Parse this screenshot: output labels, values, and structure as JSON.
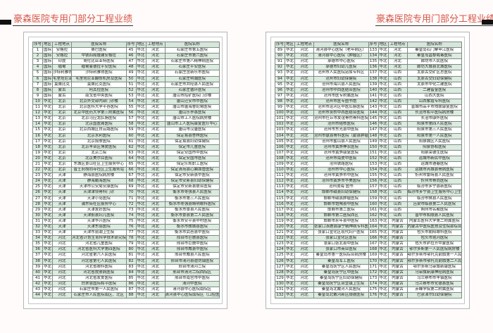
{
  "title": "豪森医院专用门部分工程业绩",
  "columns": [
    "序号",
    "地区",
    "工程地点",
    "医院名称"
  ],
  "pages": [
    {
      "rows": [
        [
          "1",
          "国际",
          "安格拉",
          "桑巴医院"
        ],
        [
          "2",
          "国际",
          "安格拉",
          "中铁四局援建安格拉"
        ],
        [
          "3",
          "国际",
          "印度",
          "哥伦比亚亚特医院"
        ],
        [
          "4",
          "国际",
          "缅甸",
          "缅甸曼德拉平安医院"
        ],
        [
          "5",
          "国际",
          "沙特利雅得",
          "沙特利雅得医院"
        ],
        [
          "6",
          "国际",
          "毛里塔尼亚",
          "毛里塔尼亚翻修机房及医院"
        ],
        [
          "7",
          "国际",
          "莫桑比克",
          "莫桑比克医院"
        ],
        [
          "8",
          "国际",
          "蒙古",
          "阿其拉医院"
        ],
        [
          "9",
          "国际",
          "蒙古",
          "南戈省中央医院"
        ],
        [
          "10",
          "华北",
          "北京",
          "北京外交部内部门诊楼"
        ],
        [
          "11",
          "华北",
          "北京",
          "北京医科大学平谷医院"
        ],
        [
          "12",
          "华北",
          "北京",
          "北京中医药大学第三附属医院"
        ],
        [
          "13",
          "华北",
          "北京",
          "北京马应龙肛肠医院"
        ],
        [
          "14",
          "华北",
          "北京",
          "北京国医阁医院"
        ],
        [
          "15",
          "华北",
          "北京",
          "北京西城区白云路医院"
        ],
        [
          "16",
          "华北",
          "北京",
          "北京水利医院"
        ],
        [
          "17",
          "华北",
          "北京",
          "北京按摩医院"
        ],
        [
          "18",
          "华北",
          "北京",
          "北京丰台区博爱医院"
        ],
        [
          "19",
          "华北",
          "北京",
          "北京二院"
        ],
        [
          "20",
          "华北",
          "北京",
          "北京美尔目医院"
        ],
        [
          "21",
          "华北",
          "北京",
          "东城区景山社区卫生服务中心"
        ],
        [
          "22",
          "华北",
          "北京",
          "普王府胡同寺社区卫生服务站"
        ],
        [
          "23",
          "华北",
          "天津",
          "静海县医院病房楼"
        ],
        [
          "24",
          "华北",
          "天津",
          "静海鹏海医院"
        ],
        [
          "25",
          "华北",
          "天津",
          "天津市公安局安康医院"
        ],
        [
          "26",
          "华北",
          "天津",
          "天津津坝骨科门诊"
        ],
        [
          "27",
          "华北",
          "天津",
          "天津小岛医院"
        ],
        [
          "28",
          "华北",
          "天津",
          "浦东街社区服务中心"
        ],
        [
          "29",
          "华北",
          "天津",
          "天津友好医院"
        ],
        [
          "30",
          "华北",
          "天津",
          "天津蓟县妇儿医院"
        ],
        [
          "31",
          "华北",
          "天津",
          "天津华兴医院"
        ],
        [
          "32",
          "华北",
          "天津",
          "天津东丽医院"
        ],
        [
          "33",
          "华北",
          "天津",
          "天津东丽湖卫生院"
        ],
        [
          "34",
          "华北",
          "河北",
          "河北省计划生育科学技术研究院"
        ],
        [
          "35",
          "华北",
          "河北",
          "河北省儿童医院"
        ],
        [
          "36",
          "华北",
          "河北",
          "河北省医科大学第四医院"
        ],
        [
          "37",
          "华北",
          "河北",
          "河北省第六人民医院"
        ],
        [
          "38",
          "华北",
          "河北",
          "河北省第七人民医院"
        ],
        [
          "39",
          "华北",
          "河北",
          "河北省眼科医院"
        ],
        [
          "40",
          "华北",
          "河北",
          "河北省皮肤病医院"
        ],
        [
          "41",
          "华北",
          "河北",
          "河北省友爱医院"
        ],
        [
          "42",
          "华北",
          "河北",
          "白求恩国际和平医院"
        ],
        [
          "43",
          "华北",
          "河北",
          "石家庄市第一人民医院"
        ],
        [
          "44",
          "华北",
          "河北",
          "石家庄市人民医院南区、北区"
        ],
        [
          "45",
          "华北",
          "河北",
          "石家庄市第五医院"
        ],
        [
          "46",
          "华北",
          "河北",
          "石家庄市第六医院"
        ],
        [
          "47",
          "华北",
          "河北",
          "石家庄市第八精神病医院"
        ],
        [
          "48",
          "华北",
          "河北",
          "石家庄平安医院"
        ],
        [
          "49",
          "华北",
          "河北",
          "石家庄含新乐市医院"
        ],
        [
          "50",
          "华北",
          "河北",
          "石家庄明瀚医院"
        ],
        [
          "51",
          "华北",
          "河北",
          "石家庄市井陉县人民医院"
        ],
        [
          "52",
          "华北",
          "河北",
          "石家庄循环医院"
        ],
        [
          "53",
          "华北",
          "河北",
          "唐山市招矿医院门诊楼"
        ],
        [
          "54",
          "华北",
          "河北",
          "唐山迁安市中医院"
        ],
        [
          "55",
          "华北",
          "河北",
          "唐山市唐海曹妃甸医院"
        ],
        [
          "56",
          "华北",
          "河北",
          "唐山乐亭县医院"
        ],
        [
          "57",
          "华北",
          "河北",
          "唐山市工人医院病房楼"
        ],
        [
          "58",
          "华北",
          "河北",
          "唐山市工人医院康复医疗中心"
        ],
        [
          "59",
          "华北",
          "河北",
          "唐山市汉唐医院"
        ],
        [
          "60",
          "华北",
          "河北",
          "保定易县杏林医院"
        ],
        [
          "61",
          "华北",
          "河北",
          "保定易县妇幼保健院"
        ],
        [
          "62",
          "华北",
          "河北",
          "保定市儿童医院"
        ],
        [
          "63",
          "华北",
          "河北",
          "保定安国市中医院"
        ],
        [
          "64",
          "华北",
          "河北",
          "保定安国市医院"
        ],
        [
          "65",
          "华北",
          "河北",
          "保定乐凯职工医院"
        ],
        [
          "66",
          "华北",
          "河北",
          "保定清苑县心脑血管医院"
        ],
        [
          "67",
          "华北",
          "河北",
          "保定市安新县中医院"
        ],
        [
          "68",
          "华北",
          "河北",
          "保定市安新县妇幼保健院"
        ],
        [
          "69",
          "华北",
          "河北",
          "保定市安新县联合医院"
        ],
        [
          "70",
          "华北",
          "河北",
          "衡水市枣强县人民医院"
        ],
        [
          "71",
          "华北",
          "河北",
          "衡水市第三人民医院"
        ],
        [
          "72",
          "华北",
          "河北",
          "衡水市枣强县睛明眼科医院"
        ],
        [
          "73",
          "华北",
          "河北",
          "衡水市景县人民医院"
        ],
        [
          "74",
          "华北",
          "河北",
          "衡水市景县第二人民医院"
        ],
        [
          "75",
          "华北",
          "河北",
          "衡水市安平县中村医院"
        ],
        [
          "76",
          "华北",
          "河北",
          "衡水市故城县医院"
        ],
        [
          "77",
          "华北",
          "河北",
          "衡水市武邑县中医院"
        ],
        [
          "78",
          "华北",
          "河北",
          "邢台市巨鹿县医院"
        ],
        [
          "79",
          "华北",
          "河北",
          "邢台市巨鹿中医院"
        ],
        [
          "80",
          "华北",
          "河北",
          "邢台市威县中医院"
        ],
        [
          "81",
          "华北",
          "河北",
          "邢台市威县人民医院"
        ],
        [
          "82",
          "华北",
          "河北",
          "邢台市清河县迪坊镇医院"
        ],
        [
          "83",
          "华北",
          "河北",
          "邢台市清河二院"
        ],
        [
          "84",
          "华北",
          "河北",
          "邢台市清河二院西院区"
        ],
        [
          "85",
          "华北",
          "河北",
          "邢台市南宫市中医院"
        ],
        [
          "86",
          "华北",
          "河北",
          "清河中医院"
        ],
        [
          "87",
          "华北",
          "河北",
          "清河县中心医院南院区"
        ],
        [
          "88",
          "华北",
          "河北",
          "清河县中心医院南院区（口腔医院）"
        ]
      ]
    },
    {
      "rows": [
        [
          "89",
          "华北",
          "河北",
          "清河县中心医院（老年病区）"
        ],
        [
          "90",
          "华北",
          "河北",
          "清河县中心医院（肿瘤区）"
        ],
        [
          "91",
          "华北",
          "河北",
          "承德市中心医院"
        ],
        [
          "92",
          "华北",
          "河北",
          "承德市妇幼儿医院"
        ],
        [
          "93",
          "华北",
          "河北",
          "沧州市人民医院泌尿专科区"
        ],
        [
          "94",
          "华北",
          "河北",
          "沧州市妇幼保健院"
        ],
        [
          "95",
          "华北",
          "河北",
          "沧州市海兴县人民医院"
        ],
        [
          "96",
          "华北",
          "河北",
          "沧州市中西医结合医院"
        ],
        [
          "97",
          "华北",
          "河北",
          "沧州市医专附属医院"
        ],
        [
          "98",
          "华北",
          "河北",
          "沧州市医专图书馆"
        ],
        [
          "99",
          "华北",
          "河北",
          "沧州市运河区中医肛肠医院"
        ],
        [
          "100",
          "华北",
          "河北",
          "沧州市吴桥中西医结合医院"
        ],
        [
          "101",
          "华北",
          "河北",
          "沧州市任丘市友谊骨伤骨科医院"
        ],
        [
          "102",
          "华北",
          "河北",
          "沧州市结核医院"
        ],
        [
          "103",
          "华北",
          "河北",
          "沧州市东光县中医院"
        ],
        [
          "104",
          "华北",
          "河北",
          "沧州市献县骨科医院（献县肿瘤医院）"
        ],
        [
          "105",
          "华北",
          "河北",
          "沧州市盐山县人民医院"
        ],
        [
          "106",
          "华北",
          "河北",
          "沧州市黄骅神农医院"
        ],
        [
          "107",
          "华北",
          "河北",
          "沧州市黄骅康复医院"
        ],
        [
          "108",
          "华北",
          "河北",
          "沧州市南皮中医院"
        ],
        [
          "109",
          "华北",
          "河北",
          "沧州铁路医院"
        ],
        [
          "110",
          "华北",
          "河北",
          "沧州市中心医院"
        ],
        [
          "111",
          "华北",
          "河北",
          "沧州市黄骅市中医院"
        ],
        [
          "112",
          "华北",
          "河北",
          "沧州市黄骅市华美医院"
        ],
        [
          "113",
          "华北",
          "河北",
          "沧州渤海 图书"
        ],
        [
          "114",
          "华北",
          "河北",
          "邯郸市磁县妇幼保健院"
        ],
        [
          "115",
          "华北",
          "河北",
          "邯郸市磁县肿瘤医院"
        ],
        [
          "116",
          "华北",
          "河北",
          "邯郸市馆陶县中医院"
        ],
        [
          "117",
          "华北",
          "河北",
          "邯郸市第二医院"
        ],
        [
          "118",
          "华北",
          "河北",
          "邯郸市第二医院西区"
        ],
        [
          "119",
          "华北",
          "河北",
          "邯郸市永年县中医院"
        ],
        [
          "120",
          "华北",
          "河北",
          "张家口涿鹿县康宁精神病专科医院"
        ],
        [
          "121",
          "华北",
          "河北",
          "张家口宣化区现代妇产医院"
        ],
        [
          "122",
          "华北",
          "河北",
          "张家口宣化区医院"
        ],
        [
          "123",
          "华北",
          "河北",
          "张家口张北县中医院"
        ],
        [
          "124",
          "华北",
          "河北",
          "张家口市商业医院"
        ],
        [
          "125",
          "华北",
          "河北",
          "秦皇岛市第一医院综合病房楼"
        ],
        [
          "126",
          "华北",
          "河北",
          "秦皇岛军工医院"
        ],
        [
          "127",
          "华北",
          "河北",
          "秦皇岛抚宁区人民医院"
        ],
        [
          "128",
          "华北",
          "河北",
          "秦皇岛抚宁区中医院"
        ],
        [
          "129",
          "华北",
          "河北",
          "秦皇岛抚宁区妇幼保健院"
        ],
        [
          "130",
          "华北",
          "河北",
          "秦皇岛抚宁区台营镇卫生院"
        ],
        [
          "131",
          "华北",
          "河北",
          "秦皇岛北戴河人民医院"
        ],
        [
          "132",
          "华北",
          "河北",
          "秦皇岛北戴河新区顺德医院"
        ],
        [
          "133",
          "华北",
          "河北",
          "秦皇岛石门寨甲江医院"
        ],
        [
          "134",
          "华北",
          "河北",
          "秦皇岛昌黎戒毒医院"
        ],
        [
          "135",
          "华北",
          "河北",
          "廊坊市人民医院"
        ],
        [
          "136",
          "华北",
          "河北",
          "廊坊大城县北城医院"
        ],
        [
          "137",
          "华北",
          "山西",
          "太原古交矿区总医院"
        ],
        [
          "138",
          "华北",
          "山西",
          "太原古交妇幼保健院"
        ],
        [
          "139",
          "华北",
          "山西",
          "太原市中化二建医院"
        ],
        [
          "140",
          "华北",
          "山西",
          "二建留金医院"
        ],
        [
          "141",
          "华北",
          "山西",
          "山西大医院"
        ],
        [
          "142",
          "华北",
          "山西",
          "山西紫霞专科医院"
        ],
        [
          "143",
          "华北",
          "山西",
          "晋城市高平市残联康复医院"
        ],
        [
          "144",
          "华北",
          "山西",
          "长治市和平医院病房楼"
        ],
        [
          "145",
          "华北",
          "山西",
          "长治市康怀医院"
        ],
        [
          "146",
          "华北",
          "山西",
          "阳泉市第四人民医院"
        ],
        [
          "147",
          "华北",
          "山西",
          "阳泉市第三人民医院"
        ],
        [
          "148",
          "华北",
          "山西",
          "阳泉市第一人民医院"
        ],
        [
          "149",
          "华北",
          "山西",
          "阳泉城区人民医院"
        ],
        [
          "150",
          "华北",
          "山西",
          "阳泉协和医院"
        ],
        [
          "151",
          "华北",
          "山西",
          "阳泉荣德生医院"
        ],
        [
          "152",
          "华北",
          "山西",
          "运城市新民中医院"
        ],
        [
          "153",
          "华北",
          "山西",
          "运城市遵春医院"
        ],
        [
          "154",
          "华北",
          "山西",
          "运城市芮城县骨病医院"
        ],
        [
          "155",
          "华北",
          "山西",
          "忻州市繁峙县人民医院"
        ],
        [
          "156",
          "华北",
          "山西",
          "忻州市骨尚医院"
        ],
        [
          "157",
          "华北",
          "山西",
          "临汾市乡宁县新医院"
        ],
        [
          "158",
          "华北",
          "山西",
          "临汾市乡宁县卫生服务中心卫生院"
        ],
        [
          "159",
          "华北",
          "山西",
          "临汾市隰县人民医院"
        ],
        [
          "160",
          "华北",
          "山西",
          "吕梁市临县第二人民医院"
        ],
        [
          "161",
          "华北",
          "山西",
          "朔州市名都医院"
        ],
        [
          "162",
          "华北",
          "山西",
          "晋中市和顺县人民医院"
        ],
        [
          "163",
          "华北",
          "内蒙古",
          "内蒙古医科大学第二附属医院"
        ],
        [
          "164",
          "华北",
          "内蒙古",
          "内蒙古中医院医技及住院部综合楼"
        ],
        [
          "165",
          "华北",
          "内蒙古",
          "包头市朝阳眼科医院"
        ],
        [
          "166",
          "华北",
          "内蒙古",
          "包头市昆河医院"
        ],
        [
          "167",
          "华北",
          "内蒙古",
          "包头市萨拉齐中蒙医院"
        ],
        [
          "168",
          "华北",
          "内蒙古",
          "鄂尔多斯第一人民医院病房楼"
        ],
        [
          "169",
          "华北",
          "内蒙古",
          "鄂尔多斯市鄂托克前旗第一人民医院病房楼"
        ],
        [
          "170",
          "华北",
          "内蒙古",
          "鄂尔多斯市鄂托克前旗第二人民医院病房楼"
        ],
        [
          "171",
          "华北",
          "内蒙古",
          "鄂尔多斯乌审旗新康医院"
        ],
        [
          "172",
          "华北",
          "内蒙古",
          "乌审旗新康神经病医院"
        ],
        [
          "173",
          "华北",
          "内蒙古",
          "乌兰察布市丰镇医院"
        ],
        [
          "174",
          "华北",
          "内蒙古",
          "乌兰察布市化德县医院"
        ],
        [
          "175",
          "华北",
          "内蒙古",
          "赤峰学院第二附属医院"
        ],
        [
          "176",
          "华北",
          "内蒙古",
          "巴彦淖尔妇幼保健院"
        ]
      ]
    }
  ]
}
